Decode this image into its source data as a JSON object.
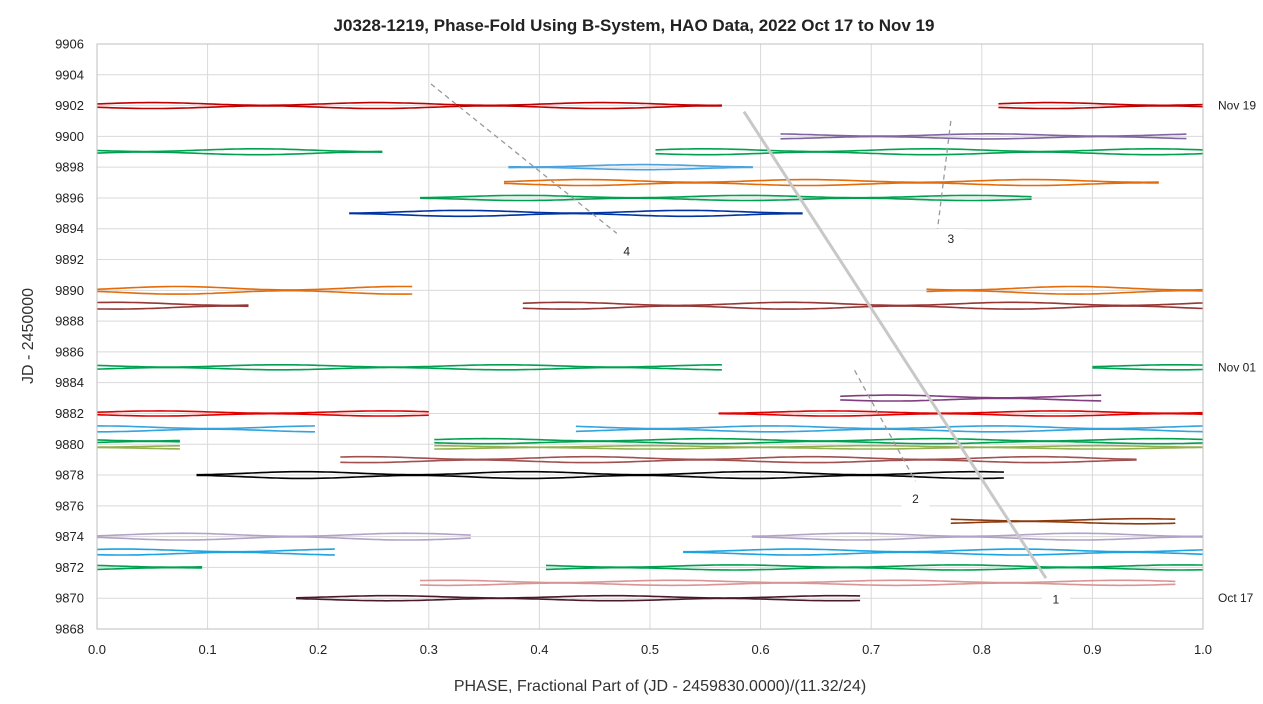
{
  "chart_data": {
    "type": "line",
    "title": "J0328-1219, Phase-Fold Using B-System, HAO Data, 2022 Oct 17 to Nov 19",
    "xlabel": "PHASE, Fractional Part of (JD - 2459830.0000)/(11.32/24)",
    "ylabel": "JD - 2450000",
    "xlim": [
      0.0,
      1.0
    ],
    "ylim": [
      9868,
      9906
    ],
    "xticks": [
      "0.0",
      "0.1",
      "0.2",
      "0.3",
      "0.4",
      "0.5",
      "0.6",
      "0.7",
      "0.8",
      "0.9",
      "1.0"
    ],
    "yticks": [
      "9868",
      "9870",
      "9872",
      "9874",
      "9876",
      "9878",
      "9880",
      "9882",
      "9884",
      "9886",
      "9888",
      "9890",
      "9892",
      "9894",
      "9896",
      "9898",
      "9900",
      "9902",
      "9904",
      "9906"
    ],
    "grid": true,
    "date_labels": [
      {
        "text": "Nov 19",
        "y": 9902
      },
      {
        "text": "Nov 01",
        "y": 9885
      },
      {
        "text": "Oct 17",
        "y": 9870
      }
    ],
    "trend_lines": [
      {
        "id": "1",
        "style": "solid",
        "color": "#c8c8c8",
        "x": [
          0.585,
          0.858
        ],
        "y": [
          9901.6,
          9871.3
        ]
      },
      {
        "id": "2",
        "style": "dashed",
        "color": "#999999",
        "x": [
          0.685,
          0.74
        ],
        "y": [
          9884.8,
          9877.6
        ]
      },
      {
        "id": "3",
        "style": "dashed",
        "color": "#999999",
        "x": [
          0.772,
          0.76
        ],
        "y": [
          9901.0,
          9894.0
        ]
      },
      {
        "id": "4",
        "style": "dashed",
        "color": "#999999",
        "x": [
          0.302,
          0.47
        ],
        "y": [
          9903.4,
          9893.7
        ]
      }
    ],
    "annotations": [
      {
        "text": "1",
        "x": 0.867,
        "y": 9869.8
      },
      {
        "text": "2",
        "x": 0.74,
        "y": 9876.3
      },
      {
        "text": "3",
        "x": 0.772,
        "y": 9893.2
      },
      {
        "text": "4",
        "x": 0.479,
        "y": 9892.4
      }
    ],
    "series": [
      {
        "color": "#c00000",
        "y": 9902.0,
        "amp": 0.35,
        "segments": [
          [
            0.0,
            0.565
          ],
          [
            0.815,
            1.0
          ]
        ]
      },
      {
        "color": "#8064a2",
        "y": 9900.0,
        "amp": 0.3,
        "segments": [
          [
            0.618,
            0.985
          ]
        ]
      },
      {
        "color": "#00a050",
        "y": 9899.0,
        "amp": 0.35,
        "segments": [
          [
            0.0,
            0.258
          ],
          [
            0.505,
            1.0
          ]
        ]
      },
      {
        "color": "#4aa3df",
        "y": 9898.0,
        "amp": 0.3,
        "segments": [
          [
            0.372,
            0.593
          ]
        ]
      },
      {
        "color": "#e36c0a",
        "y": 9897.0,
        "amp": 0.35,
        "segments": [
          [
            0.368,
            0.96
          ]
        ]
      },
      {
        "color": "#00a050",
        "y": 9896.0,
        "amp": 0.3,
        "segments": [
          [
            0.292,
            0.845
          ]
        ]
      },
      {
        "color": "#0033a0",
        "y": 9895.0,
        "amp": 0.35,
        "segments": [
          [
            0.228,
            0.638
          ]
        ]
      },
      {
        "color": "#e36c0a",
        "y": 9890.0,
        "amp": 0.45,
        "segments": [
          [
            0.0,
            0.285
          ],
          [
            0.75,
            1.0
          ]
        ]
      },
      {
        "color": "#953735",
        "y": 9889.0,
        "amp": 0.4,
        "segments": [
          [
            0.0,
            0.137
          ],
          [
            0.385,
            1.0
          ]
        ]
      },
      {
        "color": "#00a050",
        "y": 9885.0,
        "amp": 0.3,
        "segments": [
          [
            0.0,
            0.565
          ],
          [
            0.9,
            1.0
          ]
        ]
      },
      {
        "color": "#7f3f7f",
        "y": 9883.0,
        "amp": 0.35,
        "segments": [
          [
            0.672,
            0.908
          ]
        ]
      },
      {
        "color": "#e00000",
        "y": 9882.0,
        "amp": 0.3,
        "segments": [
          [
            0.0,
            0.3
          ],
          [
            0.562,
            1.0
          ]
        ]
      },
      {
        "color": "#33a3dc",
        "y": 9881.0,
        "amp": 0.35,
        "segments": [
          [
            0.0,
            0.197
          ],
          [
            0.433,
            1.0
          ]
        ]
      },
      {
        "color": "#00a050",
        "y": 9880.2,
        "amp": 0.3,
        "segments": [
          [
            0.0,
            0.075
          ],
          [
            0.305,
            1.0
          ]
        ]
      },
      {
        "color": "#92b050",
        "y": 9879.8,
        "amp": 0.2,
        "segments": [
          [
            0.0,
            0.075
          ],
          [
            0.305,
            1.0
          ]
        ]
      },
      {
        "color": "#a0504f",
        "y": 9879.0,
        "amp": 0.35,
        "segments": [
          [
            0.22,
            0.94
          ]
        ]
      },
      {
        "color": "#000000",
        "y": 9878.0,
        "amp": 0.4,
        "segments": [
          [
            0.09,
            0.82
          ]
        ]
      },
      {
        "color": "#8b3a0f",
        "y": 9875.0,
        "amp": 0.3,
        "segments": [
          [
            0.772,
            0.975
          ]
        ]
      },
      {
        "color": "#b3a2c7",
        "y": 9874.0,
        "amp": 0.4,
        "segments": [
          [
            0.0,
            0.338
          ],
          [
            0.592,
            1.0
          ]
        ]
      },
      {
        "color": "#1ea3e0",
        "y": 9873.0,
        "amp": 0.35,
        "segments": [
          [
            0.0,
            0.215
          ],
          [
            0.53,
            1.0
          ]
        ]
      },
      {
        "color": "#00a050",
        "y": 9872.0,
        "amp": 0.3,
        "segments": [
          [
            0.0,
            0.095
          ],
          [
            0.406,
            1.0
          ]
        ]
      },
      {
        "color": "#d99594",
        "y": 9871.0,
        "amp": 0.3,
        "segments": [
          [
            0.292,
            0.975
          ]
        ]
      },
      {
        "color": "#4a1a2a",
        "y": 9870.0,
        "amp": 0.3,
        "segments": [
          [
            0.18,
            0.69
          ]
        ]
      }
    ]
  }
}
